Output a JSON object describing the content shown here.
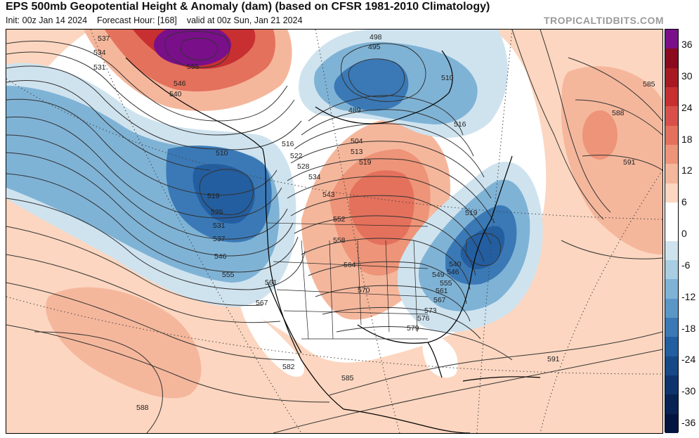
{
  "header": {
    "title": "EPS 500mb Geopotential Height & Anomaly (dam) (based on CFSR 1981-2010 Climatology)",
    "init_text": "Init: 00z Jan 14 2024",
    "forecast_hour_text": "Forecast Hour: [168]",
    "valid_text": "valid at 00z Sun, Jan 21 2024",
    "brand": "TROPICALTIDBITS.COM"
  },
  "colorbar": {
    "ticks": [
      "36",
      "30",
      "24",
      "18",
      "12",
      "6",
      "0",
      "-6",
      "-12",
      "-18",
      "-24",
      "-30",
      "-36"
    ],
    "tick_values": [
      36,
      30,
      24,
      18,
      12,
      6,
      0,
      -6,
      -12,
      -18,
      -24,
      -30,
      -36
    ],
    "colors": [
      "#7a0f8a",
      "#8b0a1e",
      "#a81a22",
      "#c72f31",
      "#d9504a",
      "#e4715c",
      "#ee9478",
      "#f5b79c",
      "#fcd6c0",
      "#ffffff",
      "#ffffff",
      "#cfe3ef",
      "#a9cde3",
      "#7fb3d6",
      "#5a97c7",
      "#3a79b6",
      "#235ea0",
      "#174887",
      "#0e346d",
      "#082353",
      "#041440"
    ]
  },
  "contour_labels": [
    {
      "id": "lbl-537a",
      "text": "537"
    },
    {
      "id": "lbl-534",
      "text": "534"
    },
    {
      "id": "lbl-531a",
      "text": "531"
    },
    {
      "id": "lbl-555a",
      "text": "555"
    },
    {
      "id": "lbl-546a",
      "text": "546"
    },
    {
      "id": "lbl-540",
      "text": "540"
    },
    {
      "id": "lbl-510a",
      "text": "510"
    },
    {
      "id": "lbl-519a",
      "text": "519"
    },
    {
      "id": "lbl-525",
      "text": "525"
    },
    {
      "id": "lbl-531b",
      "text": "531"
    },
    {
      "id": "lbl-537b",
      "text": "537"
    },
    {
      "id": "lbl-546b",
      "text": "546"
    },
    {
      "id": "lbl-555b",
      "text": "555"
    },
    {
      "id": "lbl-561a",
      "text": "561"
    },
    {
      "id": "lbl-567a",
      "text": "567"
    },
    {
      "id": "lbl-498",
      "text": "498"
    },
    {
      "id": "lbl-495",
      "text": "495"
    },
    {
      "id": "lbl-489",
      "text": "489"
    },
    {
      "id": "lbl-510b",
      "text": "510"
    },
    {
      "id": "lbl-516a",
      "text": "516"
    },
    {
      "id": "lbl-516b",
      "text": "516"
    },
    {
      "id": "lbl-522",
      "text": "522"
    },
    {
      "id": "lbl-528",
      "text": "528"
    },
    {
      "id": "lbl-534b",
      "text": "534"
    },
    {
      "id": "lbl-504",
      "text": "504"
    },
    {
      "id": "lbl-513",
      "text": "513"
    },
    {
      "id": "lbl-519b",
      "text": "519"
    },
    {
      "id": "lbl-543",
      "text": "543"
    },
    {
      "id": "lbl-552",
      "text": "552"
    },
    {
      "id": "lbl-558",
      "text": "558"
    },
    {
      "id": "lbl-564",
      "text": "564"
    },
    {
      "id": "lbl-570",
      "text": "570"
    },
    {
      "id": "lbl-573",
      "text": "573"
    },
    {
      "id": "lbl-576",
      "text": "576"
    },
    {
      "id": "lbl-579",
      "text": "579"
    },
    {
      "id": "lbl-582",
      "text": "582"
    },
    {
      "id": "lbl-585a",
      "text": "585"
    },
    {
      "id": "lbl-588a",
      "text": "588"
    },
    {
      "id": "lbl-519c",
      "text": "519"
    },
    {
      "id": "lbl-540b",
      "text": "540"
    },
    {
      "id": "lbl-546c",
      "text": "546"
    },
    {
      "id": "lbl-549",
      "text": "549"
    },
    {
      "id": "lbl-555c",
      "text": "555"
    },
    {
      "id": "lbl-561b",
      "text": "561"
    },
    {
      "id": "lbl-567b",
      "text": "567"
    },
    {
      "id": "lbl-585b",
      "text": "585"
    },
    {
      "id": "lbl-588b",
      "text": "588"
    },
    {
      "id": "lbl-591a",
      "text": "591"
    },
    {
      "id": "lbl-591b",
      "text": "591"
    }
  ]
}
